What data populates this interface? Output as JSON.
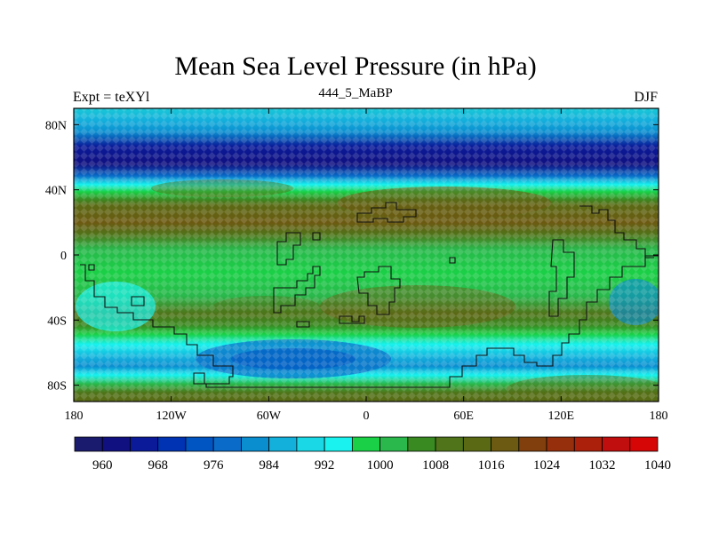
{
  "title": "Mean Sea Level Pressure (in hPa)",
  "subtitle_left": "Expt = teXYl",
  "subtitle_center": "444_5_MaBP",
  "subtitle_right": "DJF",
  "map": {
    "projection": "cylindrical-equidistant",
    "lon_ticks": [
      "180",
      "120W",
      "60W",
      "0",
      "60E",
      "120E",
      "180"
    ],
    "lat_ticks": [
      "80N",
      "40N",
      "0",
      "40S",
      "80S"
    ],
    "lat_values": [
      80,
      40,
      0,
      -40,
      -80
    ]
  },
  "colorbar": {
    "colors": [
      "#1a1a6e",
      "#101080",
      "#0a1a99",
      "#0033b3",
      "#0055c2",
      "#0a6cc8",
      "#0a8ed0",
      "#14b0dc",
      "#1ad8e6",
      "#19f2ee",
      "#1ad046",
      "#2ab84c",
      "#3a8a22",
      "#4f7419",
      "#5a6a14",
      "#6d5a12",
      "#823f0e",
      "#96300c",
      "#aa200a",
      "#c00e0e",
      "#d60606"
    ],
    "labels": [
      "960",
      "968",
      "976",
      "984",
      "992",
      "1000",
      "1008",
      "1016",
      "1024",
      "1032",
      "1040"
    ]
  },
  "pressure_bands": [
    {
      "lat_from": 90,
      "lat_to": 78,
      "pressure": "1004"
    },
    {
      "lat_from": 78,
      "lat_to": 70,
      "pressure": "988"
    },
    {
      "lat_from": 70,
      "lat_to": 56,
      "pressure": "972"
    },
    {
      "lat_from": 56,
      "lat_to": 48,
      "pressure": "996"
    },
    {
      "lat_from": 48,
      "lat_to": 40,
      "pressure": "1012"
    },
    {
      "lat_from": 40,
      "lat_to": 22,
      "pressure": "1018"
    },
    {
      "lat_from": 22,
      "lat_to": -20,
      "pressure": "1010"
    },
    {
      "lat_from": -20,
      "lat_to": -42,
      "pressure": "1016"
    },
    {
      "lat_from": -42,
      "lat_to": -55,
      "pressure": "1008"
    },
    {
      "lat_from": -55,
      "lat_to": -74,
      "pressure": "992"
    },
    {
      "lat_from": -74,
      "lat_to": -90,
      "pressure": "1016"
    }
  ]
}
